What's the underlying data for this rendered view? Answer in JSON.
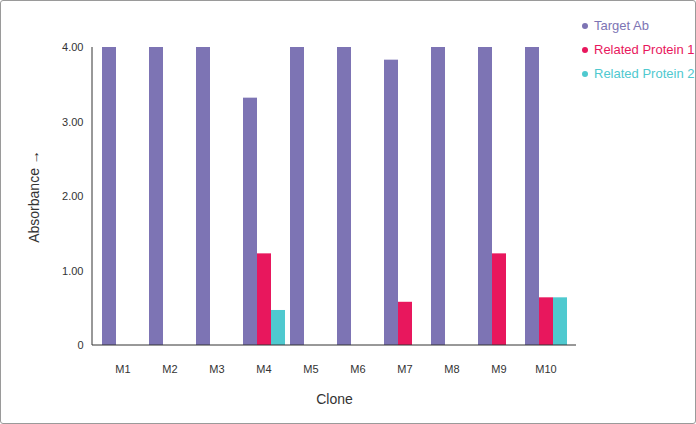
{
  "chart_data": {
    "type": "bar",
    "x_label": "Clone",
    "y_label": "Absorbance",
    "categories": [
      "M1",
      "M2",
      "M3",
      "M4",
      "M5",
      "M6",
      "M7",
      "M8",
      "M9",
      "M10"
    ],
    "series": [
      {
        "name": "Target Ab",
        "color": "#7d74b4",
        "values": [
          4.0,
          4.0,
          4.0,
          3.32,
          4.0,
          4.0,
          3.83,
          4.0,
          4.0,
          4.0
        ]
      },
      {
        "name": "Related Protein 1",
        "color": "#e8175d",
        "values": [
          0,
          0,
          0,
          1.23,
          0,
          0,
          0.58,
          0,
          1.23,
          0.64
        ]
      },
      {
        "name": "Related Protein 2",
        "color": "#4fc9cf",
        "values": [
          0,
          0,
          0,
          0.47,
          0,
          0,
          0,
          0,
          0,
          0.64
        ]
      }
    ],
    "ylim": [
      0,
      4
    ],
    "yticks": [
      0,
      {
        "value": 1,
        "label": "1.00"
      },
      {
        "value": 2,
        "label": "2.00"
      },
      {
        "value": 3,
        "label": "3.00"
      },
      {
        "value": 4,
        "label": "4.00"
      }
    ],
    "legend": "top-right",
    "grid": false
  }
}
